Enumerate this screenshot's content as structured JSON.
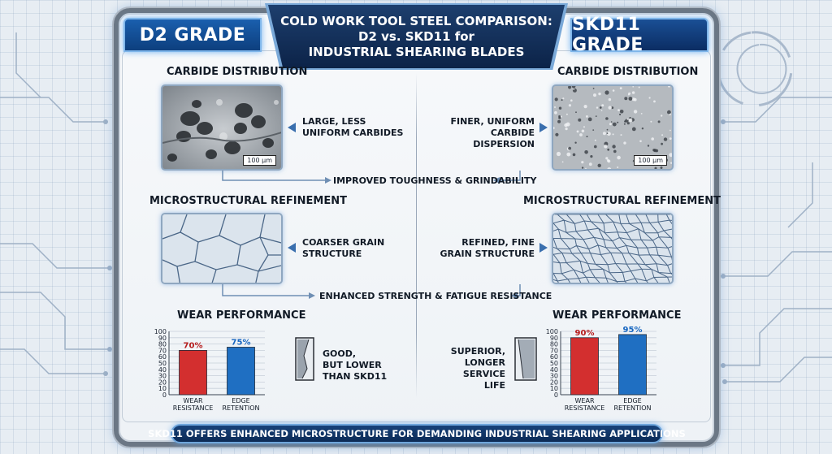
{
  "title": {
    "line1": "COLD WORK TOOL STEEL COMPARISON:",
    "line2": "D2 vs. SKD11 for",
    "line3": "INDUSTRIAL SHEARING BLADES"
  },
  "left": {
    "grade": "D2 GRADE",
    "carbide": {
      "title": "CARBIDE DISTRIBUTION",
      "label_line1": "LARGE, LESS",
      "label_line2": "UNIFORM CARBIDES",
      "scale": "100 µm"
    },
    "micro": {
      "title": "MICROSTRUCTURAL REFINEMENT",
      "label_line1": "COARSER GRAIN",
      "label_line2": "STRUCTURE"
    },
    "wear": {
      "title": "WEAR PERFORMANCE",
      "label_line1": "GOOD,",
      "label_line2": "BUT LOWER",
      "label_line3": "THAN SKD11"
    }
  },
  "right": {
    "grade": "SKD11 GRADE",
    "carbide": {
      "title": "CARBIDE DISTRIBUTION",
      "label_line1": "FINER, UNIFORM",
      "label_line2": "CARBIDE DISPERSION",
      "scale": "100 µm"
    },
    "micro": {
      "title": "MICROSTRUCTURAL REFINEMENT",
      "label_line1": "REFINED, FINE",
      "label_line2": "GRAIN STRUCTURE"
    },
    "wear": {
      "title": "WEAR PERFORMANCE",
      "label_line1": "SUPERIOR,",
      "label_line2": "LONGER",
      "label_line3": "SERVICE LIFE"
    }
  },
  "connectors": {
    "toughness": "IMPROVED TOUGHNESS & GRINDABILITY",
    "strength": "ENHANCED STRENGTH & FATIGUE RESISTANCE"
  },
  "footer": "SKD11 OFFERS ENHANCED MICROSTRUCTURE FOR DEMANDING INDUSTRIAL SHEARING APPLICATIONS",
  "chart_data": [
    {
      "type": "bar",
      "categories": [
        "WEAR RESISTANCE",
        "EDGE RETENTION"
      ],
      "category_lines": [
        [
          "WEAR",
          "RESISTANCE"
        ],
        [
          "EDGE",
          "RETENTION"
        ]
      ],
      "values": [
        70,
        75
      ],
      "value_labels": [
        "70%",
        "75%"
      ],
      "ylim": [
        0,
        100
      ],
      "yticks": [
        0,
        10,
        20,
        30,
        40,
        50,
        60,
        70,
        80,
        90,
        100
      ],
      "colors": [
        "#d32f2f",
        "#1f6fc2"
      ],
      "label_colors": [
        "#b71c1c",
        "#1565c0"
      ]
    },
    {
      "type": "bar",
      "categories": [
        "WEAR RESISTANCE",
        "EDGE RETENTION"
      ],
      "category_lines": [
        [
          "WEAR",
          "RESISTANCE"
        ],
        [
          "EDGE",
          "RETENTION"
        ]
      ],
      "values": [
        90,
        95
      ],
      "value_labels": [
        "90%",
        "95%"
      ],
      "ylim": [
        0,
        100
      ],
      "yticks": [
        0,
        10,
        20,
        30,
        40,
        50,
        60,
        70,
        80,
        90,
        100
      ],
      "colors": [
        "#d32f2f",
        "#1f6fc2"
      ],
      "label_colors": [
        "#b71c1c",
        "#1565c0"
      ]
    }
  ],
  "colors": {
    "accent": "#0d3f7e",
    "frame": "#6b7785"
  }
}
